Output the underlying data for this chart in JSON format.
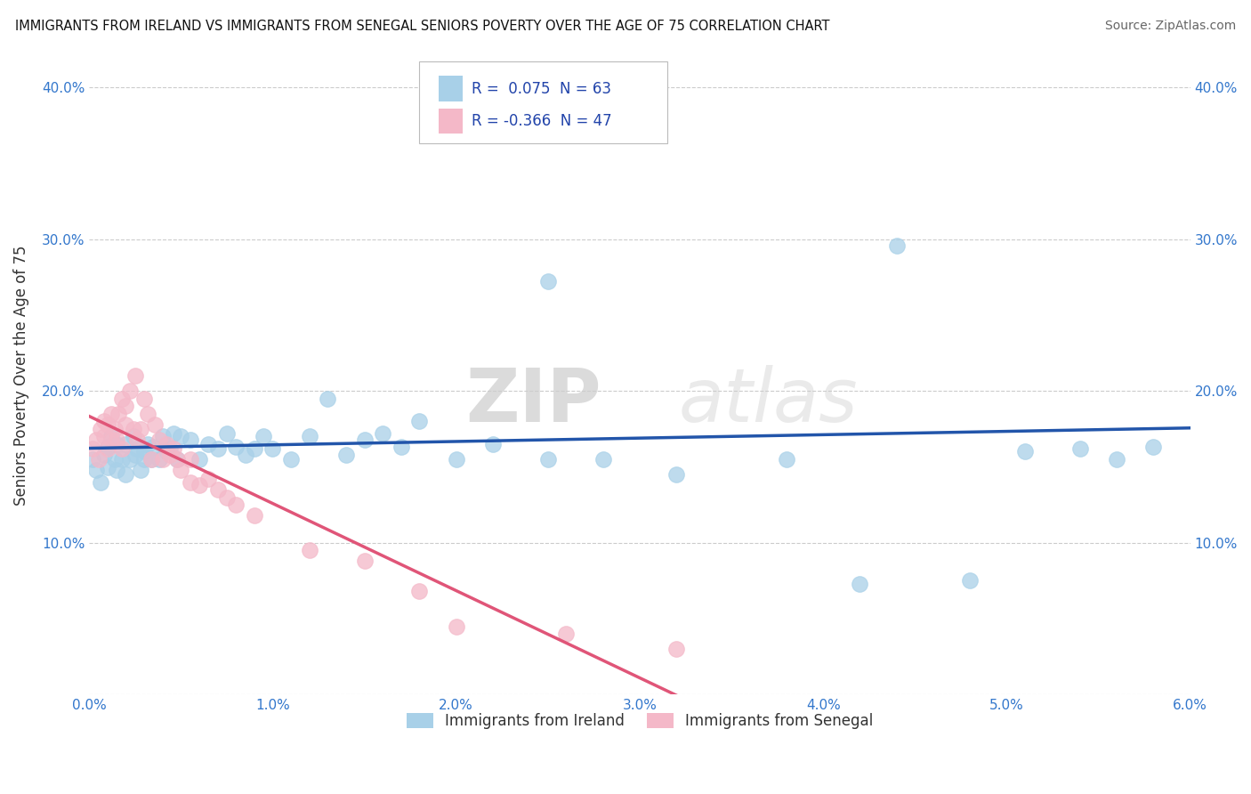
{
  "title": "IMMIGRANTS FROM IRELAND VS IMMIGRANTS FROM SENEGAL SENIORS POVERTY OVER THE AGE OF 75 CORRELATION CHART",
  "source": "Source: ZipAtlas.com",
  "ylabel": "Seniors Poverty Over the Age of 75",
  "xlabel_ireland": "Immigrants from Ireland",
  "xlabel_senegal": "Immigrants from Senegal",
  "watermark_zip": "ZIP",
  "watermark_atlas": "atlas",
  "ireland_R": 0.075,
  "ireland_N": 63,
  "senegal_R": -0.366,
  "senegal_N": 47,
  "xlim": [
    0.0,
    0.06
  ],
  "ylim": [
    0.0,
    0.42
  ],
  "xticks": [
    0.0,
    0.01,
    0.02,
    0.03,
    0.04,
    0.05,
    0.06
  ],
  "yticks": [
    0.0,
    0.1,
    0.2,
    0.3,
    0.4
  ],
  "ytick_labels": [
    "",
    "10.0%",
    "20.0%",
    "30.0%",
    "40.0%"
  ],
  "xtick_labels": [
    "0.0%",
    "1.0%",
    "2.0%",
    "3.0%",
    "4.0%",
    "5.0%",
    "6.0%"
  ],
  "ireland_color": "#a8d0e8",
  "senegal_color": "#f4b8c8",
  "ireland_line_color": "#2255aa",
  "senegal_line_color": "#e05578",
  "ireland_scatter_x": [
    0.0002,
    0.0004,
    0.0006,
    0.0008,
    0.001,
    0.001,
    0.0012,
    0.0014,
    0.0015,
    0.0015,
    0.0018,
    0.002,
    0.002,
    0.0022,
    0.0024,
    0.0025,
    0.0026,
    0.0028,
    0.003,
    0.003,
    0.0032,
    0.0034,
    0.0035,
    0.0038,
    0.004,
    0.0042,
    0.0044,
    0.0046,
    0.0048,
    0.005,
    0.0055,
    0.006,
    0.0065,
    0.007,
    0.0075,
    0.008,
    0.0085,
    0.009,
    0.0095,
    0.01,
    0.011,
    0.012,
    0.013,
    0.014,
    0.015,
    0.016,
    0.017,
    0.018,
    0.02,
    0.022,
    0.025,
    0.028,
    0.032,
    0.038,
    0.042,
    0.048,
    0.051,
    0.054,
    0.056,
    0.025,
    0.029,
    0.044,
    0.058
  ],
  "ireland_scatter_y": [
    0.155,
    0.148,
    0.14,
    0.158,
    0.163,
    0.15,
    0.17,
    0.155,
    0.148,
    0.165,
    0.155,
    0.145,
    0.165,
    0.155,
    0.17,
    0.158,
    0.162,
    0.148,
    0.16,
    0.155,
    0.165,
    0.155,
    0.163,
    0.155,
    0.17,
    0.16,
    0.162,
    0.172,
    0.155,
    0.17,
    0.168,
    0.155,
    0.165,
    0.162,
    0.172,
    0.163,
    0.158,
    0.162,
    0.17,
    0.162,
    0.155,
    0.17,
    0.195,
    0.158,
    0.168,
    0.172,
    0.163,
    0.18,
    0.155,
    0.165,
    0.272,
    0.155,
    0.145,
    0.155,
    0.073,
    0.075,
    0.16,
    0.162,
    0.155,
    0.155,
    0.375,
    0.296,
    0.163
  ],
  "senegal_scatter_x": [
    0.0002,
    0.0004,
    0.0005,
    0.0006,
    0.0008,
    0.0008,
    0.001,
    0.001,
    0.0012,
    0.0012,
    0.0014,
    0.0015,
    0.0016,
    0.0018,
    0.0018,
    0.002,
    0.002,
    0.0022,
    0.0024,
    0.0025,
    0.0026,
    0.0028,
    0.003,
    0.0032,
    0.0034,
    0.0036,
    0.0038,
    0.004,
    0.0042,
    0.0044,
    0.0046,
    0.0048,
    0.005,
    0.0055,
    0.0055,
    0.006,
    0.0065,
    0.007,
    0.0075,
    0.008,
    0.009,
    0.012,
    0.015,
    0.018,
    0.02,
    0.026,
    0.032
  ],
  "senegal_scatter_y": [
    0.162,
    0.168,
    0.155,
    0.175,
    0.17,
    0.18,
    0.162,
    0.178,
    0.168,
    0.185,
    0.175,
    0.168,
    0.185,
    0.195,
    0.162,
    0.178,
    0.19,
    0.2,
    0.175,
    0.21,
    0.168,
    0.175,
    0.195,
    0.185,
    0.155,
    0.178,
    0.168,
    0.155,
    0.165,
    0.158,
    0.162,
    0.155,
    0.148,
    0.14,
    0.155,
    0.138,
    0.142,
    0.135,
    0.13,
    0.125,
    0.118,
    0.095,
    0.088,
    0.068,
    0.045,
    0.04,
    0.03
  ],
  "senegal_line_x_end": 0.035
}
